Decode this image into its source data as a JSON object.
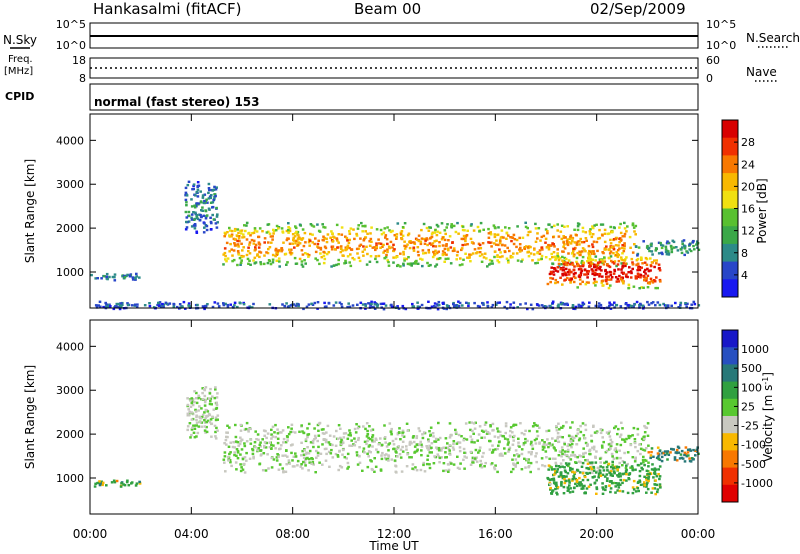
{
  "header": {
    "station": "Hankasalmi (fitACF)",
    "beam": "Beam 00",
    "date": "02/Sep/2009"
  },
  "aux_panels": {
    "nsky_label": "N.Sky",
    "nsky_ticks": [
      "10^5",
      "10^0"
    ],
    "nsearch_label": "N.Search",
    "nsearch_ticks": [
      "10^5",
      "10^0"
    ],
    "freq_label": "Freq.",
    "freq_unit": "[MHz]",
    "freq_ticks": [
      "18",
      "8"
    ],
    "nave_label": "Nave",
    "nave_ticks": [
      "60",
      "0"
    ],
    "cpid_label": "CPID",
    "cpid_text": "normal (fast stereo) 153"
  },
  "chart_data": [
    {
      "type": "heatmap",
      "title": "",
      "xlabel": "Time UT",
      "ylabel": "Slant Range [km]",
      "x_ticks": [
        "00:00",
        "04:00",
        "08:00",
        "12:00",
        "16:00",
        "20:00",
        "00:00"
      ],
      "y_ticks": [
        "1000",
        "2000",
        "3000",
        "4000"
      ],
      "xlim_hours": [
        0,
        24
      ],
      "ylim_km": [
        180,
        4600
      ],
      "colorbar": {
        "label": "Power [dB]",
        "ticks": [
          "28",
          "24",
          "20",
          "16",
          "12",
          "8",
          "4"
        ],
        "colors": [
          "#1818f0",
          "#2846c8",
          "#2c8a88",
          "#3aa848",
          "#58c030",
          "#f0e010",
          "#f8b800",
          "#f87800",
          "#f03000",
          "#d80000"
        ]
      },
      "features": [
        {
          "hours": [
            0.0,
            1.9
          ],
          "range_km": [
            830,
            1000
          ],
          "value_db": 8
        },
        {
          "hours": [
            3.7,
            5.0
          ],
          "range_km": [
            1900,
            3100
          ],
          "value_db": 8
        },
        {
          "hours": [
            5.2,
            21.5
          ],
          "range_km": [
            1150,
            2150
          ],
          "value_db": 22
        },
        {
          "hours": [
            18.0,
            22.5
          ],
          "range_km": [
            650,
            1400
          ],
          "value_db": 28
        },
        {
          "hours": [
            21.5,
            24.0
          ],
          "range_km": [
            1400,
            1750
          ],
          "value_db": 10
        },
        {
          "hours": [
            0.0,
            24.0
          ],
          "range_km": [
            180,
            350
          ],
          "value_db": 6
        }
      ]
    },
    {
      "type": "heatmap",
      "title": "",
      "xlabel": "Time UT",
      "ylabel": "Slant Range [km]",
      "x_ticks": [
        "00:00",
        "04:00",
        "08:00",
        "12:00",
        "16:00",
        "20:00",
        "00:00"
      ],
      "y_ticks": [
        "1000",
        "2000",
        "3000",
        "4000"
      ],
      "xlim_hours": [
        0,
        24
      ],
      "ylim_km": [
        180,
        4600
      ],
      "colorbar": {
        "label": "Velocity [m s-1]",
        "label_main": "Velocity [m s",
        "label_exp": "-1",
        "label_end": "]",
        "ticks": [
          "1000",
          "500",
          "100",
          "25",
          "-25",
          "-100",
          "-500",
          "-1000"
        ],
        "colors": [
          "#1818c8",
          "#2850c0",
          "#287878",
          "#30a040",
          "#58c830",
          "#c8c8c0",
          "#f8b800",
          "#f87800",
          "#f03000",
          "#e00000"
        ]
      },
      "features": [
        {
          "hours": [
            0.0,
            2.0
          ],
          "range_km": [
            830,
            980
          ],
          "value_ms": 150
        },
        {
          "hours": [
            3.8,
            5.0
          ],
          "range_km": [
            1900,
            3100
          ],
          "value_ms": 0
        },
        {
          "hours": [
            5.2,
            22.0
          ],
          "range_km": [
            1150,
            2300
          ],
          "value_ms": 0
        },
        {
          "hours": [
            18.0,
            22.5
          ],
          "range_km": [
            650,
            1400
          ],
          "value_ms": 120
        },
        {
          "hours": [
            22.0,
            24.0
          ],
          "range_km": [
            1400,
            1750
          ],
          "value_ms": 300
        }
      ]
    }
  ]
}
